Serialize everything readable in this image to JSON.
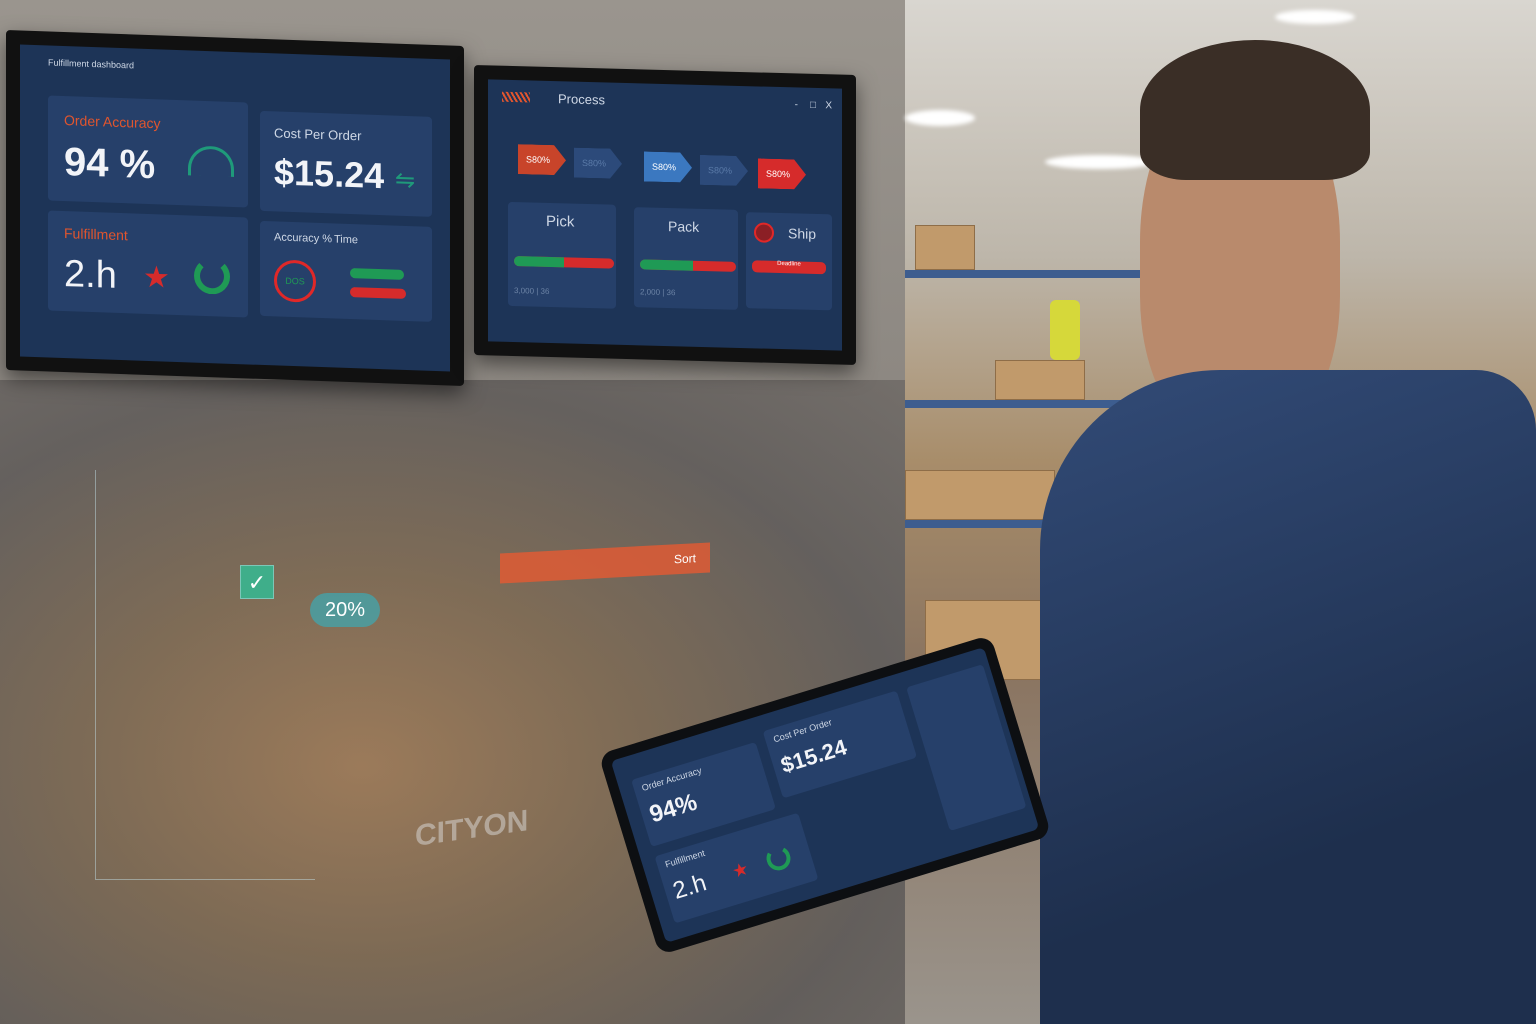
{
  "left_monitor": {
    "header": "Fulfillment dashboard",
    "cards": [
      {
        "label": "Order Accuracy",
        "value": "94 %",
        "icon": "gauge-icon"
      },
      {
        "label": "Cost Per Order",
        "value": "$15.24",
        "icon": "trend-icon"
      },
      {
        "label": "Fulfillment",
        "value": "2.h",
        "icon": "star-icon",
        "icon2": "refresh-ring-icon"
      },
      {
        "label": "Accuracy %",
        "label2": "Time",
        "ring_value": "DOS",
        "bars": [
          {
            "color": "#1f9a55",
            "fill": 0.75
          },
          {
            "color": "#d62b2b",
            "fill": 0.75
          }
        ]
      }
    ]
  },
  "right_monitor": {
    "title": "Process",
    "controls": [
      "-",
      "□",
      "X"
    ],
    "steps": [
      {
        "label": "S80%",
        "color": "#c8442a"
      },
      {
        "label": "S80%",
        "color": "#2c4a7a"
      },
      {
        "label": "S80%",
        "color": "#3b78c0"
      },
      {
        "label": "S80%",
        "color": "#2c4a7a"
      },
      {
        "label": "S80%",
        "color": "#d62b2b"
      }
    ],
    "stages": [
      {
        "name": "Pick",
        "green": 0.5,
        "footer": "3,000 | 36"
      },
      {
        "name": "Pack",
        "green": 0.55,
        "footer": "2,000 | 36"
      },
      {
        "name": "Ship",
        "green": 0,
        "footer": "Deadline"
      }
    ]
  },
  "hologram": {
    "percent": "20%",
    "sign": "CITYON",
    "banner": "Sort"
  },
  "tablet": {
    "cards": [
      {
        "label": "Order Accuracy",
        "value": "94%"
      },
      {
        "label": "Cost Per Order",
        "value": "$15.24"
      },
      {
        "label": "Fulfillment",
        "value": "2.h"
      }
    ]
  },
  "colors": {
    "accent_orange": "#e0552e",
    "green": "#1f9a55",
    "red": "#d62b2b",
    "screen_bg": "#1d3457"
  }
}
